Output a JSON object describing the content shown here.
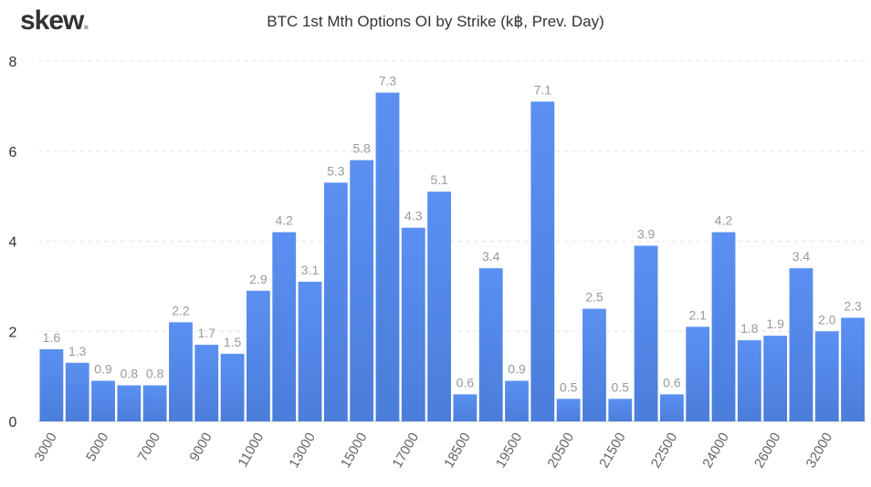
{
  "logo": {
    "text": "skew",
    "dot": "."
  },
  "chart_data": {
    "type": "bar",
    "title": "BTC 1st Mth Options OI by Strike (k฿, Prev. Day)",
    "xlabel": "",
    "ylabel": "",
    "ylim": [
      0,
      8
    ],
    "yticks": [
      0,
      2,
      4,
      6,
      8
    ],
    "grid": true,
    "bar_color": "#5a8ef0",
    "categories": [
      "3000",
      "",
      "5000",
      "",
      "7000",
      "",
      "9000",
      "",
      "11000",
      "",
      "13000",
      "",
      "15000",
      "",
      "17000",
      "",
      "18500",
      "",
      "19500",
      "",
      "20500",
      "",
      "21500",
      "",
      "22500",
      "",
      "24000",
      "",
      "26000",
      "",
      "32000",
      ""
    ],
    "values": [
      1.6,
      1.3,
      0.9,
      0.8,
      0.8,
      2.2,
      1.7,
      1.5,
      2.9,
      4.2,
      3.1,
      5.3,
      5.8,
      7.3,
      4.3,
      5.1,
      0.6,
      3.4,
      0.9,
      7.1,
      0.5,
      2.5,
      0.5,
      3.9,
      0.6,
      2.1,
      4.2,
      1.8,
      1.9,
      3.4,
      2.0,
      2.3
    ],
    "data_labels": [
      "1.6",
      "1.3",
      "0.9",
      "0.8",
      "0.8",
      "2.2",
      "1.7",
      "1.5",
      "2.9",
      "4.2",
      "3.1",
      "5.3",
      "5.8",
      "7.3",
      "4.3",
      "5.1",
      "0.6",
      "3.4",
      "0.9",
      "7.1",
      "0.5",
      "2.5",
      "0.5",
      "3.9",
      "0.6",
      "2.1",
      "4.2",
      "1.8",
      "1.9",
      "3.4",
      "2.0",
      "2.3"
    ]
  }
}
